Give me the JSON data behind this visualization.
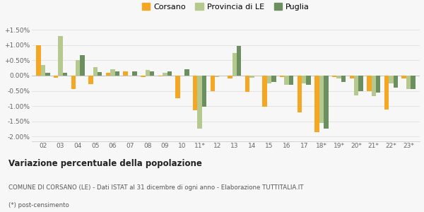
{
  "years": [
    "02",
    "03",
    "04",
    "05",
    "06",
    "07",
    "08",
    "09",
    "10",
    "11*",
    "12",
    "13",
    "14",
    "15",
    "16",
    "17",
    "18*",
    "19*",
    "20*",
    "21*",
    "22*",
    "23*"
  ],
  "corsano": [
    1.0,
    -0.07,
    -0.45,
    -0.28,
    0.1,
    0.15,
    -0.05,
    -0.03,
    -0.75,
    -1.15,
    -0.5,
    -0.1,
    -0.53,
    -1.02,
    -0.05,
    -1.2,
    -1.85,
    -0.05,
    -0.1,
    -0.5,
    -1.12,
    -0.1
  ],
  "provincia_le": [
    0.35,
    1.3,
    0.5,
    0.27,
    0.22,
    0.0,
    0.18,
    0.1,
    0.0,
    -1.75,
    -0.05,
    0.75,
    -0.07,
    -0.25,
    -0.3,
    -0.25,
    -1.55,
    -0.1,
    -0.65,
    -0.68,
    -0.25,
    -0.45
  ],
  "puglia": [
    0.1,
    0.1,
    0.67,
    0.11,
    0.13,
    0.15,
    0.13,
    0.13,
    0.22,
    -1.02,
    0.0,
    0.98,
    0.0,
    -0.2,
    -0.3,
    -0.3,
    -1.75,
    -0.2,
    -0.5,
    -0.55,
    -0.4,
    -0.45
  ],
  "color_corsano": "#f5a623",
  "color_provincia": "#b5c98e",
  "color_puglia": "#6b8f5e",
  "yticks": [
    -2.0,
    -1.5,
    -1.0,
    -0.5,
    0.0,
    0.5,
    1.0,
    1.5
  ],
  "ytick_labels": [
    "-2.00%",
    "-1.50%",
    "-1.00%",
    "-0.50%",
    "0.00%",
    "+0.50%",
    "+1.00%",
    "+1.50%"
  ],
  "ylim": [
    -2.15,
    1.72
  ],
  "background_color": "#f7f7f7",
  "grid_color": "#e0e0e0",
  "title": "Variazione percentuale della popolazione",
  "caption1": "COMUNE DI CORSANO (LE) - Dati ISTAT al 31 dicembre di ogni anno - Elaborazione TUTTITALIA.IT",
  "caption2": "(*) post-censimento",
  "legend_labels": [
    "Corsano",
    "Provincia di LE",
    "Puglia"
  ]
}
